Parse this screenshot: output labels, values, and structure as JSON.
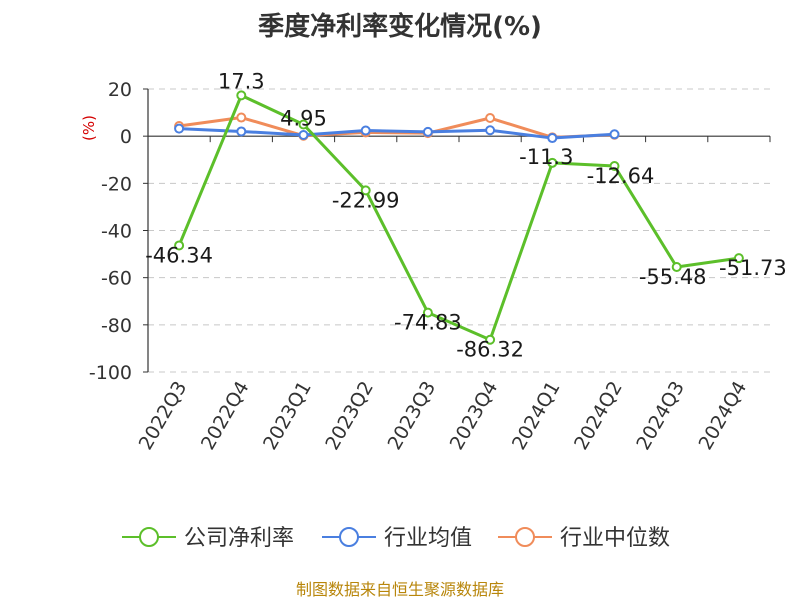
{
  "title": "季度净利率变化情况(%)",
  "source": "制图数据来自恒生聚源数据库",
  "chart_data": {
    "type": "line",
    "title": "季度净利率变化情况(%)",
    "ylabel": "(%)",
    "ylim": [
      -100,
      20
    ],
    "yticks": [
      20,
      0,
      -20,
      -40,
      -60,
      -80,
      -100
    ],
    "grid": true,
    "legend_position": "bottom",
    "categories": [
      "2022Q3",
      "2022Q4",
      "2023Q1",
      "2023Q2",
      "2023Q3",
      "2023Q4",
      "2024Q1",
      "2024Q2",
      "2024Q3",
      "2024Q4"
    ],
    "series": [
      {
        "name": "公司净利率",
        "color": "#5cbf2a",
        "values": [
          -46.34,
          17.3,
          4.95,
          -22.99,
          -74.83,
          -86.32,
          -11.3,
          -12.64,
          -55.48,
          -51.73
        ],
        "labels": [
          "-46.34",
          "17.3",
          "4.95",
          "-22.99",
          "-74.83",
          "-86.32",
          "-11.3",
          "-12.64",
          "-55.48",
          "-51.73"
        ]
      },
      {
        "name": "行业均值",
        "color": "#4a7fe0",
        "values": [
          3.2,
          2.0,
          0.5,
          2.4,
          1.8,
          2.5,
          -0.8,
          0.8,
          null,
          null
        ]
      },
      {
        "name": "行业中位数",
        "color": "#f08c5a",
        "values": [
          4.3,
          7.9,
          0.2,
          1.6,
          1.3,
          7.7,
          -0.5,
          0.6,
          null,
          null
        ]
      }
    ]
  }
}
